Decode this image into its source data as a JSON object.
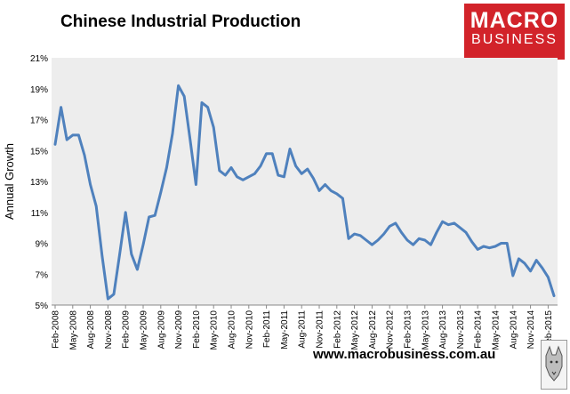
{
  "header": {
    "title": "Chinese Industrial Production",
    "logo_line1": "MACRO",
    "logo_line2": "BUSINESS"
  },
  "footer": {
    "url": "www.macrobusiness.com.au"
  },
  "colors": {
    "line": "#4f81bd",
    "plot_background": "#ededed",
    "logo_background": "#d2232a"
  },
  "chart_data": {
    "type": "line",
    "title": "Chinese Industrial Production",
    "xlabel": "",
    "ylabel": "Annual Growth",
    "ylim": [
      5,
      21
    ],
    "yticks": [
      "5%",
      "7%",
      "9%",
      "11%",
      "13%",
      "15%",
      "17%",
      "19%",
      "21%"
    ],
    "grid": false,
    "xticks": [
      "Feb-2008",
      "May-2008",
      "Aug-2008",
      "Nov-2008",
      "Feb-2009",
      "May-2009",
      "Aug-2009",
      "Nov-2009",
      "Feb-2010",
      "May-2010",
      "Aug-2010",
      "Nov-2010",
      "Feb-2011",
      "May-2011",
      "Aug-2011",
      "Nov-2011",
      "Feb-2012",
      "May-2012",
      "Aug-2012",
      "Nov-2012",
      "Feb-2013",
      "May-2013",
      "Aug-2013",
      "Nov-2013",
      "Feb-2014",
      "May-2014",
      "Aug-2014",
      "Nov-2014",
      "Feb-2015"
    ],
    "x_start": "Feb-2008",
    "x_end": "Apr-2015",
    "series": [
      {
        "values": [
          15.4,
          17.8,
          15.7,
          16.0,
          16.0,
          14.7,
          12.8,
          11.4,
          8.2,
          5.4,
          5.7,
          8.3,
          11.0,
          8.3,
          7.3,
          8.9,
          10.7,
          10.8,
          12.3,
          13.9,
          16.1,
          19.2,
          18.5,
          15.7,
          12.8,
          18.1,
          17.8,
          16.5,
          13.7,
          13.4,
          13.9,
          13.3,
          13.1,
          13.3,
          13.5,
          14.0,
          14.8,
          14.8,
          13.4,
          13.3,
          15.1,
          14.0,
          13.5,
          13.8,
          13.2,
          12.4,
          12.8,
          12.4,
          12.2,
          11.9,
          9.3,
          9.6,
          9.5,
          9.2,
          8.9,
          9.2,
          9.6,
          10.1,
          10.3,
          9.7,
          9.2,
          8.9,
          9.3,
          9.2,
          8.9,
          9.7,
          10.4,
          10.2,
          10.3,
          10.0,
          9.7,
          9.1,
          8.6,
          8.8,
          8.7,
          8.8,
          9.0,
          9.0,
          6.9,
          8.0,
          7.7,
          7.2,
          7.9,
          7.4,
          6.8,
          5.6
        ]
      }
    ]
  }
}
